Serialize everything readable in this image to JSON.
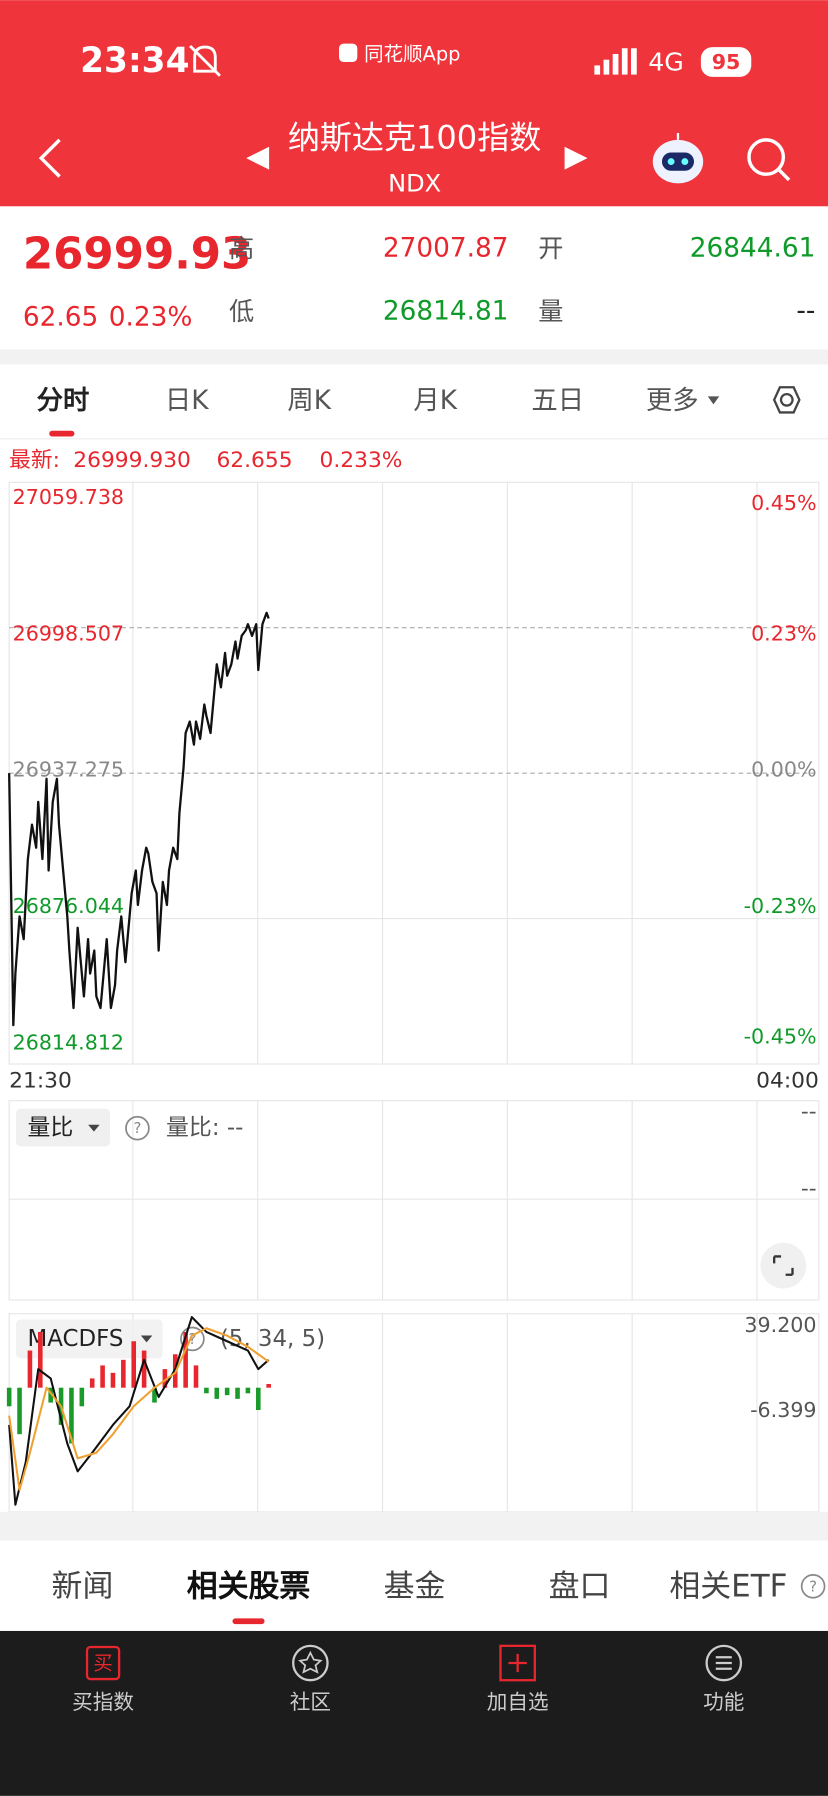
{
  "status_bar": {
    "time": "23:34",
    "app": "同花顺App",
    "network": "4G",
    "battery": "95"
  },
  "header": {
    "title": "纳斯达克100指数",
    "code": "NDX"
  },
  "quote": {
    "price": "26999.93",
    "change": "62.65",
    "change_pct": "0.23%",
    "high_label": "高",
    "high": "27007.87",
    "open_label": "开",
    "open": "26844.61",
    "low_label": "低",
    "low": "26814.81",
    "volume_label": "量",
    "volume": "--"
  },
  "tabs": [
    "分时",
    "日K",
    "周K",
    "月K",
    "五日",
    "更多"
  ],
  "latest": {
    "label": "最新:",
    "price": "26999.930",
    "change": "62.655",
    "change_pct": "0.233%"
  },
  "chart_data": [
    {
      "type": "line",
      "color": "#111111",
      "x": [
        0,
        2,
        3,
        5,
        7,
        9,
        11,
        13,
        14,
        16,
        18,
        19,
        21,
        23,
        24,
        26,
        28,
        29,
        31,
        33,
        34,
        36,
        38,
        39,
        41,
        42,
        44,
        46,
        47,
        49,
        51,
        52,
        54,
        56,
        57,
        59,
        61,
        62,
        64,
        66,
        67,
        69,
        71,
        72,
        74,
        76,
        77,
        79,
        81,
        82,
        84,
        85,
        87,
        89,
        90,
        92,
        94,
        95,
        97,
        99,
        100,
        102,
        104,
        105,
        107,
        109,
        110,
        112,
        114,
        115,
        117,
        119,
        120,
        122,
        124,
        125
      ],
      "values": [
        26937.3,
        26831.2,
        26852.9,
        26877.0,
        26867.4,
        26901.1,
        26915.6,
        26905.9,
        26925.2,
        26901.1,
        26934.9,
        26896.3,
        26925.2,
        26934.9,
        26915.6,
        26896.3,
        26877.0,
        26862.6,
        26838.4,
        26872.2,
        26862.6,
        26843.3,
        26867.4,
        26852.9,
        26862.6,
        26843.3,
        26838.4,
        26857.7,
        26867.4,
        26838.4,
        26848.1,
        26862.6,
        26877.0,
        26857.7,
        26867.4,
        26886.7,
        26896.3,
        26881.8,
        26896.3,
        26905.9,
        26903.5,
        26891.5,
        26886.7,
        26862.6,
        26891.5,
        26881.8,
        26896.3,
        26905.9,
        26901.1,
        26920.4,
        26939.7,
        26954.2,
        26959.0,
        26949.3,
        26959.0,
        26951.7,
        26966.2,
        26961.4,
        26954.2,
        26973.4,
        26983.1,
        26973.4,
        26987.9,
        26978.3,
        26983.1,
        26992.7,
        26985.5,
        26995.1,
        26997.5,
        27000.0,
        26995.1,
        27000.0,
        26980.7,
        27000.0,
        27004.8,
        27002.4
      ],
      "xlim": [
        0,
        390
      ],
      "xticks": [
        {
          "value": 0,
          "label": "21:30"
        },
        {
          "value": 390,
          "label": "04:00"
        }
      ],
      "ylim": [
        26814.812,
        27059.738
      ],
      "yticks": [
        27059.738,
        26998.507,
        26937.275,
        26876.044,
        26814.812
      ],
      "y2lim": [
        -0.46,
        0.46
      ],
      "y2ticks": [
        {
          "value": 0.45,
          "label": "0.45%"
        },
        {
          "value": 0.23,
          "label": "0.23%"
        },
        {
          "value": 0,
          "label": "0.00%"
        },
        {
          "value": -0.23,
          "label": "-0.23%"
        },
        {
          "value": -0.45,
          "label": "-0.45%"
        }
      ],
      "grid": true
    },
    {
      "type": "macd",
      "indicator": "MACDFS",
      "params": "(5, 34, 5)",
      "xlim": [
        0,
        390
      ],
      "ylim": [
        -66.8,
        39.2
      ],
      "yticks": [
        {
          "value": 39.2,
          "label": "39.200"
        },
        {
          "value": -6.399,
          "label": "-6.399"
        }
      ],
      "up_color": "#e8262e",
      "down_color": "#1a9a2a",
      "bars": {
        "x": [
          0,
          5,
          10,
          15,
          20,
          25,
          30,
          35,
          40,
          45,
          50,
          55,
          60,
          65,
          70,
          75,
          80,
          85,
          90,
          95,
          100,
          105,
          110,
          115,
          120,
          125
        ],
        "values": [
          -10,
          -25,
          20,
          30,
          -8,
          -20,
          -30,
          -10,
          5,
          12,
          8,
          15,
          25,
          20,
          -8,
          10,
          18,
          30,
          12,
          -3,
          -6,
          -4,
          -6,
          -3,
          -12,
          2
        ]
      },
      "lines": [
        {
          "color": "#111111",
          "x": [
            0,
            3,
            8,
            14,
            20,
            28,
            33,
            40,
            50,
            58,
            65,
            72,
            80,
            88,
            95,
            105,
            115,
            120,
            125
          ],
          "values": [
            -20,
            -63,
            -40,
            10,
            5,
            -30,
            -45,
            -35,
            -20,
            -10,
            15,
            -5,
            10,
            38,
            30,
            25,
            20,
            10,
            15
          ]
        },
        {
          "color": "#f0a030",
          "x": [
            0,
            5,
            10,
            18,
            25,
            33,
            42,
            50,
            60,
            70,
            80,
            88,
            95,
            105,
            115,
            125
          ],
          "values": [
            -15,
            -55,
            -35,
            0,
            -10,
            -38,
            -35,
            -25,
            -10,
            0,
            8,
            28,
            32,
            28,
            22,
            14
          ]
        }
      ]
    }
  ],
  "volume_panel": {
    "selector": "量比",
    "help": "?",
    "label": "量比: --",
    "right_top": "--",
    "right_bottom": "--"
  },
  "macd_help": "?",
  "bottom_tabs": [
    "新闻",
    "相关股票",
    "基金",
    "盘口",
    "相关ETF"
  ],
  "bottom_help": "?",
  "nav": [
    {
      "icon": "买",
      "label": "买指数"
    },
    {
      "label": "社区"
    },
    {
      "label": "加自选"
    },
    {
      "label": "功能"
    }
  ]
}
